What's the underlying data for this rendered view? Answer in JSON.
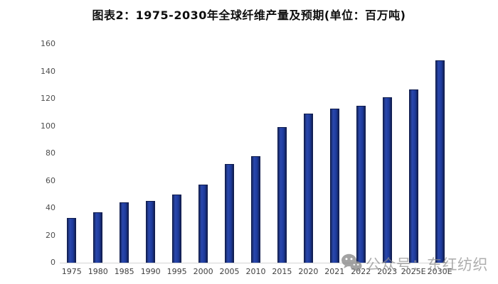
{
  "chart": {
    "title": "图表2：1975-2030年全球纤维产量及预期(单位：百万吨)"
  },
  "chart_data": {
    "type": "bar",
    "title": "图表2：1975-2030年全球纤维产量及预期(单位：百万吨)",
    "categories": [
      "1975",
      "1980",
      "1985",
      "1990",
      "1995",
      "2000",
      "2005",
      "2010",
      "2015",
      "2020",
      "2021",
      "2022",
      "2023",
      "2025E",
      "2030E"
    ],
    "values": [
      33,
      37,
      44,
      45,
      50,
      57,
      72,
      78,
      99,
      109,
      113,
      115,
      121,
      127,
      148
    ],
    "xlabel": "",
    "ylabel": "",
    "unit": "百万吨",
    "ylim": [
      0,
      160
    ],
    "yticks": [
      0,
      20,
      40,
      60,
      80,
      100,
      120,
      140,
      160
    ],
    "grid": false,
    "legend": false,
    "bar_color": "#1d3a9a",
    "bar_border_color": "#0f1c4e",
    "axis_line_color": "#d4d4d4",
    "tick_label_color": "#4d4d4d"
  },
  "watermark": {
    "icon": "wechat-icon",
    "text": "公众号：东红纺织",
    "color": "#8f8f8f"
  }
}
